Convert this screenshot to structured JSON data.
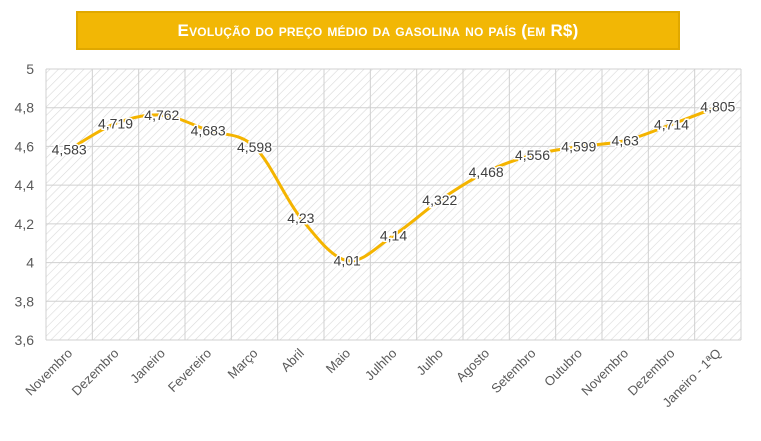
{
  "chart_data": {
    "type": "line",
    "title": "Evolução do preço médio da gasolina no país (em R$)",
    "categories": [
      "Novembro",
      "Dezembro",
      "Janeiro",
      "Fevereiro",
      "Março",
      "Abril",
      "Maio",
      "Julhho",
      "Julho",
      "Agosto",
      "Setembro",
      "Outubro",
      "Novembro",
      "Dezembro",
      "Janeiro - 1ªQ"
    ],
    "series": [
      {
        "values": [
          4.583,
          4.719,
          4.762,
          4.683,
          4.598,
          4.23,
          4.01,
          4.14,
          4.322,
          4.468,
          4.556,
          4.599,
          4.63,
          4.714,
          4.805
        ],
        "labels": [
          "4,583",
          "4,719",
          "4,762",
          "4,683",
          "4,598",
          "4,23",
          "4,01",
          "4,14",
          "4,322",
          "4,468",
          "4,556",
          "4,599",
          "4,63",
          "4,714",
          "4,805"
        ]
      }
    ],
    "yticks": [
      "3,6",
      "3,8",
      "4",
      "4,2",
      "4,4",
      "4,6",
      "4,8",
      "5"
    ],
    "ylim": [
      3.6,
      5
    ],
    "grid": true,
    "line_color": "#f4b400",
    "xlabel": "",
    "ylabel": ""
  }
}
